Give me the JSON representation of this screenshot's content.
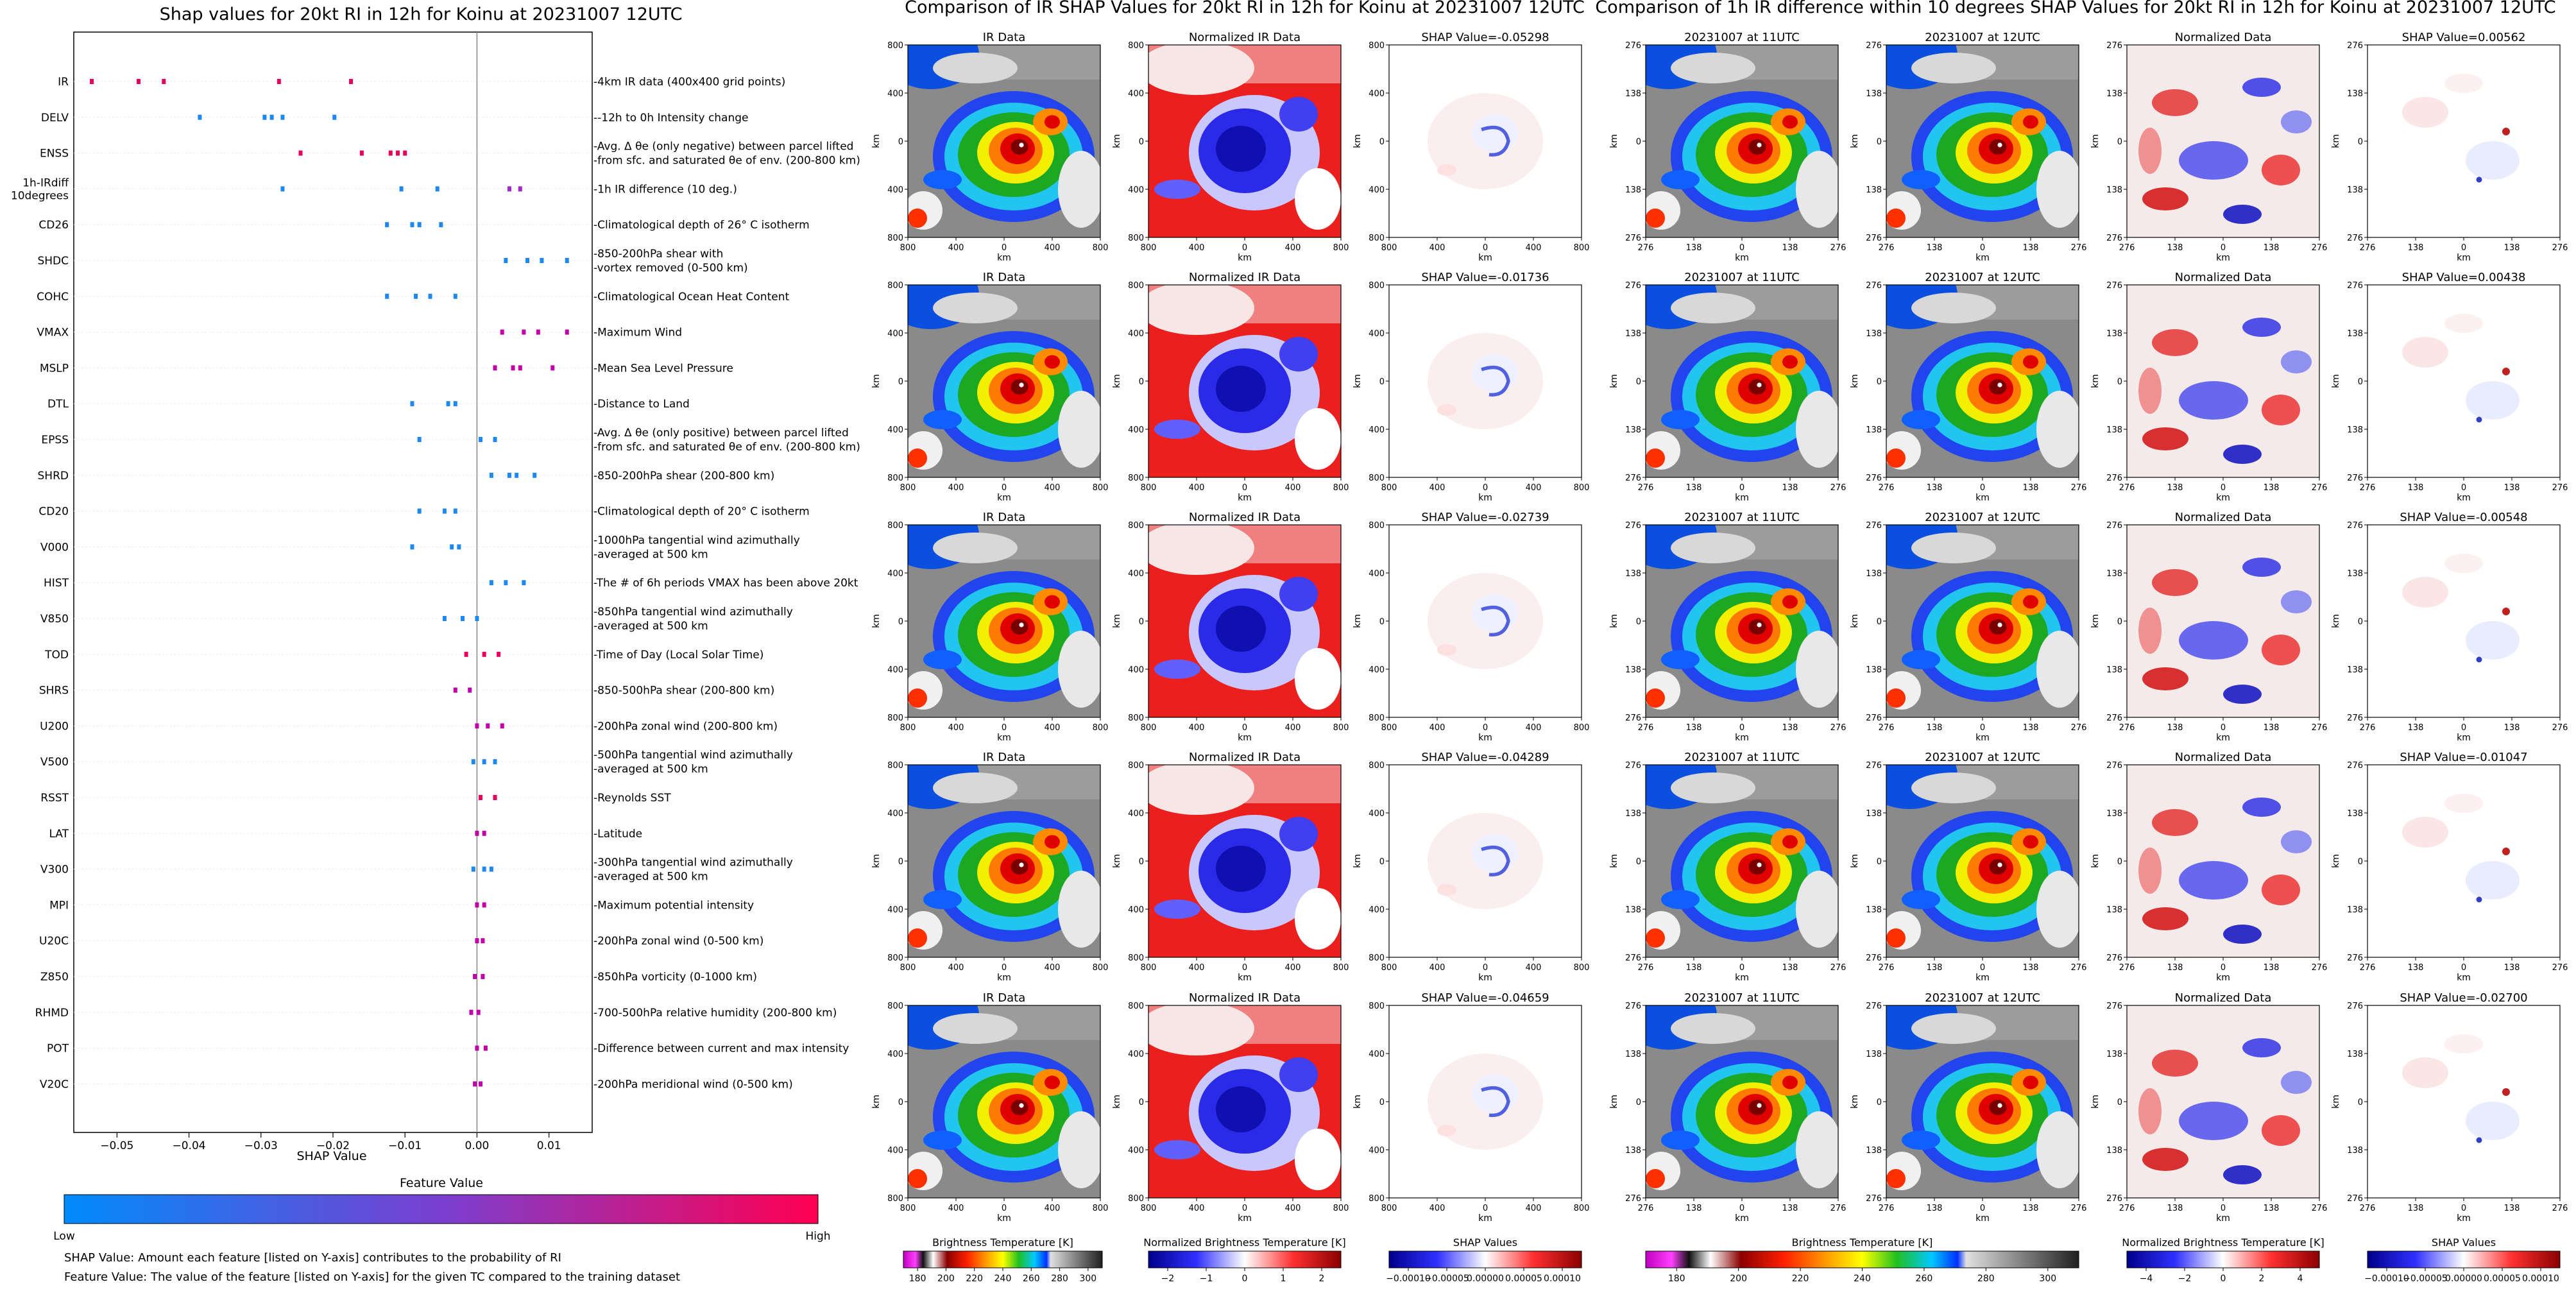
{
  "shap_panel": {
    "title": "Shap values for 20kt RI in 12h for Koinu at 20231007 12UTC",
    "xlabel": "SHAP Value",
    "xticks": [
      -0.05,
      -0.04,
      -0.03,
      -0.02,
      -0.01,
      0.0,
      0.01
    ],
    "xtick_labels": [
      "−0.05",
      "−0.04",
      "−0.03",
      "−0.02",
      "−0.01",
      "0.00",
      "0.01"
    ],
    "colorbar": {
      "title": "Feature Value",
      "low_label": "Low",
      "high_label": "High",
      "colors": [
        "#008bfb",
        "#7a3fd0",
        "#ff0052"
      ]
    },
    "notes": [
      "SHAP Value: Amount each feature [listed on Y-axis] contributes to the probability of RI",
      "Feature Value: The value of the feature [listed on Y-axis] for the given TC compared to the training dataset"
    ]
  },
  "chart_data": [
    {
      "type": "scatter",
      "title": "Shap values for 20kt RI in 12h for Koinu at 20231007 12UTC",
      "xlabel": "SHAP Value",
      "xlim": [
        -0.056,
        0.016
      ],
      "grid": false,
      "features": [
        {
          "name": "IR",
          "desc": [
            "4km IR data (400x400 grid points)"
          ],
          "values": [
            -0.0535,
            -0.047,
            -0.0435,
            -0.0275,
            -0.0175
          ],
          "colors": [
            "#e8005c",
            "#e8005c",
            "#e8005c",
            "#e8005c",
            "#e8005c"
          ]
        },
        {
          "name": "DELV",
          "desc": [
            "-12h to 0h Intensity change"
          ],
          "values": [
            -0.0385,
            -0.0295,
            -0.0285,
            -0.027,
            -0.0198
          ],
          "colors": [
            "#1e88ee",
            "#1e88ee",
            "#1e88ee",
            "#1e88ee",
            "#1e88ee"
          ]
        },
        {
          "name": "ENSS",
          "desc": [
            "Avg. Δ θe (only negative) between parcel lifted",
            "from sfc. and saturated θe of env. (200-800 km)"
          ],
          "values": [
            -0.0245,
            -0.016,
            -0.012,
            -0.011,
            -0.01
          ],
          "colors": [
            "#e8005c",
            "#e8005c",
            "#e8005c",
            "#e8005c",
            "#e8005c"
          ]
        },
        {
          "name": "1h-IRdiff 10degrees",
          "desc": [
            "1h IR difference (10 deg.)"
          ],
          "values": [
            -0.027,
            -0.0105,
            -0.0055,
            0.0045,
            0.006
          ],
          "colors": [
            "#1e88ee",
            "#1e88ee",
            "#1e88ee",
            "#a02bc0",
            "#a02bc0"
          ]
        },
        {
          "name": "CD26",
          "desc": [
            "Climatological depth of 26° C isotherm"
          ],
          "values": [
            -0.0125,
            -0.009,
            -0.008,
            -0.005
          ],
          "colors": [
            "#1e88ee",
            "#1e88ee",
            "#1e88ee",
            "#1e88ee"
          ]
        },
        {
          "name": "SHDC",
          "desc": [
            "850-200hPa shear with",
            "vortex removed (0-500 km)"
          ],
          "values": [
            0.004,
            0.007,
            0.009,
            0.0125
          ],
          "colors": [
            "#1e88ee",
            "#1e88ee",
            "#1e88ee",
            "#1e88ee"
          ]
        },
        {
          "name": "COHC",
          "desc": [
            "Climatological Ocean Heat Content"
          ],
          "values": [
            -0.0125,
            -0.0085,
            -0.0065,
            -0.003
          ],
          "colors": [
            "#1e88ee",
            "#1e88ee",
            "#1e88ee",
            "#1e88ee"
          ]
        },
        {
          "name": "VMAX",
          "desc": [
            "Maximum Wind"
          ],
          "values": [
            0.0035,
            0.0065,
            0.0085,
            0.0125
          ],
          "colors": [
            "#c000a8",
            "#c000a8",
            "#c000a8",
            "#c000a8"
          ]
        },
        {
          "name": "MSLP",
          "desc": [
            "Mean Sea Level Pressure"
          ],
          "values": [
            0.0025,
            0.005,
            0.006,
            0.0105
          ],
          "colors": [
            "#c000a8",
            "#c000a8",
            "#c000a8",
            "#c000a8"
          ]
        },
        {
          "name": "DTL",
          "desc": [
            "Distance to Land"
          ],
          "values": [
            -0.009,
            -0.004,
            -0.003
          ],
          "colors": [
            "#1e88ee",
            "#1e88ee",
            "#1e88ee"
          ]
        },
        {
          "name": "EPSS",
          "desc": [
            "Avg. Δ θe (only positive) between parcel lifted",
            "from sfc. and saturated θe of env. (200-800 km)"
          ],
          "values": [
            -0.008,
            0.0005,
            0.0025
          ],
          "colors": [
            "#1e88ee",
            "#1e88ee",
            "#1e88ee"
          ]
        },
        {
          "name": "SHRD",
          "desc": [
            "850-200hPa shear (200-800 km)"
          ],
          "values": [
            0.002,
            0.0045,
            0.0055,
            0.008
          ],
          "colors": [
            "#1e88ee",
            "#1e88ee",
            "#1e88ee",
            "#1e88ee"
          ]
        },
        {
          "name": "CD20",
          "desc": [
            "Climatological depth of 20° C isotherm"
          ],
          "values": [
            -0.008,
            -0.0045,
            -0.003
          ],
          "colors": [
            "#1e88ee",
            "#1e88ee",
            "#1e88ee"
          ]
        },
        {
          "name": "V000",
          "desc": [
            "1000hPa tangential wind azimuthally",
            "averaged at 500 km"
          ],
          "values": [
            -0.009,
            -0.0035,
            -0.0025
          ],
          "colors": [
            "#1e88ee",
            "#1e88ee",
            "#1e88ee"
          ]
        },
        {
          "name": "HIST",
          "desc": [
            "The # of 6h periods VMAX has been above 20kt"
          ],
          "values": [
            0.002,
            0.004,
            0.0065
          ],
          "colors": [
            "#1e88ee",
            "#1e88ee",
            "#1e88ee"
          ]
        },
        {
          "name": "V850",
          "desc": [
            "850hPa tangential wind azimuthally",
            "averaged at 500 km"
          ],
          "values": [
            -0.0045,
            -0.002,
            0.0
          ],
          "colors": [
            "#1e88ee",
            "#1e88ee",
            "#1e88ee"
          ]
        },
        {
          "name": "TOD",
          "desc": [
            "Time of Day (Local Solar Time)"
          ],
          "values": [
            -0.0015,
            0.001,
            0.003
          ],
          "colors": [
            "#e8005c",
            "#e8005c",
            "#e8005c"
          ]
        },
        {
          "name": "SHRS",
          "desc": [
            "850-500hPa shear (200-800 km)"
          ],
          "values": [
            -0.003,
            -0.001
          ],
          "colors": [
            "#c000a8",
            "#c000a8"
          ]
        },
        {
          "name": "U200",
          "desc": [
            "200hPa zonal wind (200-800 km)"
          ],
          "values": [
            0.0,
            0.0015,
            0.0035
          ],
          "colors": [
            "#c000a8",
            "#c000a8",
            "#c000a8"
          ]
        },
        {
          "name": "V500",
          "desc": [
            "500hPa tangential wind azimuthally",
            "averaged at 500 km"
          ],
          "values": [
            -0.0005,
            0.001,
            0.0025
          ],
          "colors": [
            "#1e88ee",
            "#1e88ee",
            "#1e88ee"
          ]
        },
        {
          "name": "RSST",
          "desc": [
            "Reynolds SST"
          ],
          "values": [
            0.0005,
            0.0025
          ],
          "colors": [
            "#e8005c",
            "#e8005c"
          ]
        },
        {
          "name": "LAT",
          "desc": [
            "Latitude"
          ],
          "values": [
            0.0,
            0.001
          ],
          "colors": [
            "#c000a8",
            "#c000a8"
          ]
        },
        {
          "name": "V300",
          "desc": [
            "300hPa tangential wind azimuthally",
            "averaged at 500 km"
          ],
          "values": [
            -0.0005,
            0.001,
            0.002
          ],
          "colors": [
            "#1e88ee",
            "#1e88ee",
            "#1e88ee"
          ]
        },
        {
          "name": "MPI",
          "desc": [
            "Maximum potential intensity"
          ],
          "values": [
            0.0,
            0.001
          ],
          "colors": [
            "#c000a8",
            "#c000a8"
          ]
        },
        {
          "name": "U20C",
          "desc": [
            "200hPa zonal wind (0-500 km)"
          ],
          "values": [
            0.0,
            0.0008
          ],
          "colors": [
            "#c000a8",
            "#c000a8"
          ]
        },
        {
          "name": "Z850",
          "desc": [
            "850hPa vorticity (0-1000 km)"
          ],
          "values": [
            -0.0003,
            0.0008
          ],
          "colors": [
            "#c000a8",
            "#c000a8"
          ]
        },
        {
          "name": "RHMD",
          "desc": [
            "700-500hPa relative humidity (200-800 km)"
          ],
          "values": [
            -0.0008,
            0.0002
          ],
          "colors": [
            "#c000a8",
            "#c000a8"
          ]
        },
        {
          "name": "POT",
          "desc": [
            "Difference between current and max intensity"
          ],
          "values": [
            0.0,
            0.0012
          ],
          "colors": [
            "#c000a8",
            "#c000a8"
          ]
        },
        {
          "name": "V20C",
          "desc": [
            "200hPa meridional wind (0-500 km)"
          ],
          "values": [
            -0.0003,
            0.0005
          ],
          "colors": [
            "#c000a8",
            "#c000a8"
          ]
        }
      ]
    },
    {
      "type": "heatmap",
      "title": "Comparison of IR SHAP Values for 20kt RI in 12h for Koinu at 20231007 12UTC",
      "column_titles": [
        "IR Data",
        "Normalized IR Data"
      ],
      "shap_titles": [
        "SHAP Value=-0.05298",
        "SHAP Value=-0.01736",
        "SHAP Value=-0.02739",
        "SHAP Value=-0.04289",
        "SHAP Value=-0.04659"
      ],
      "xlabel": "km",
      "ylabel": "km",
      "ticks": [
        "800",
        "400",
        "0",
        "400",
        "800"
      ]
    },
    {
      "type": "heatmap",
      "title": "Comparison of 1h IR difference within 10 degrees SHAP Values for 20kt RI in 12h for Koinu at 20231007 12UTC",
      "column_titles": [
        "20231007 at 11UTC",
        "20231007 at 12UTC",
        "Normalized Data"
      ],
      "shap_titles": [
        "SHAP Value=0.00562",
        "SHAP Value=0.00438",
        "SHAP Value=-0.00548",
        "SHAP Value=-0.01047",
        "SHAP Value=-0.02700"
      ],
      "xlabel": "km",
      "ylabel": "km",
      "ticks": [
        "276",
        "138",
        "0",
        "138",
        "276"
      ]
    }
  ],
  "colorbars": [
    {
      "label": "Brightness Temperature [K]",
      "ticks": [
        "180",
        "200",
        "220",
        "240",
        "260",
        "280",
        "300"
      ]
    },
    {
      "label": "Normalized Brightness Temperature [K]",
      "ticks": [
        "−2",
        "−1",
        "0",
        "1",
        "2"
      ]
    },
    {
      "label": "SHAP Values",
      "ticks": [
        "−0.00010",
        "−0.00005",
        "0.00000",
        "0.00005",
        "0.00010"
      ]
    },
    {
      "label": "Brightness Temperature [K]",
      "ticks": [
        "180",
        "200",
        "220",
        "240",
        "260",
        "280",
        "300"
      ]
    },
    {
      "label": "Normalized Brightness Temperature [K]",
      "ticks": [
        "−4",
        "−2",
        "0",
        "2",
        "4"
      ]
    },
    {
      "label": "SHAP Values",
      "ticks": [
        "−0.00010",
        "−0.00005",
        "0.00000",
        "0.00005",
        "0.00010"
      ]
    }
  ]
}
